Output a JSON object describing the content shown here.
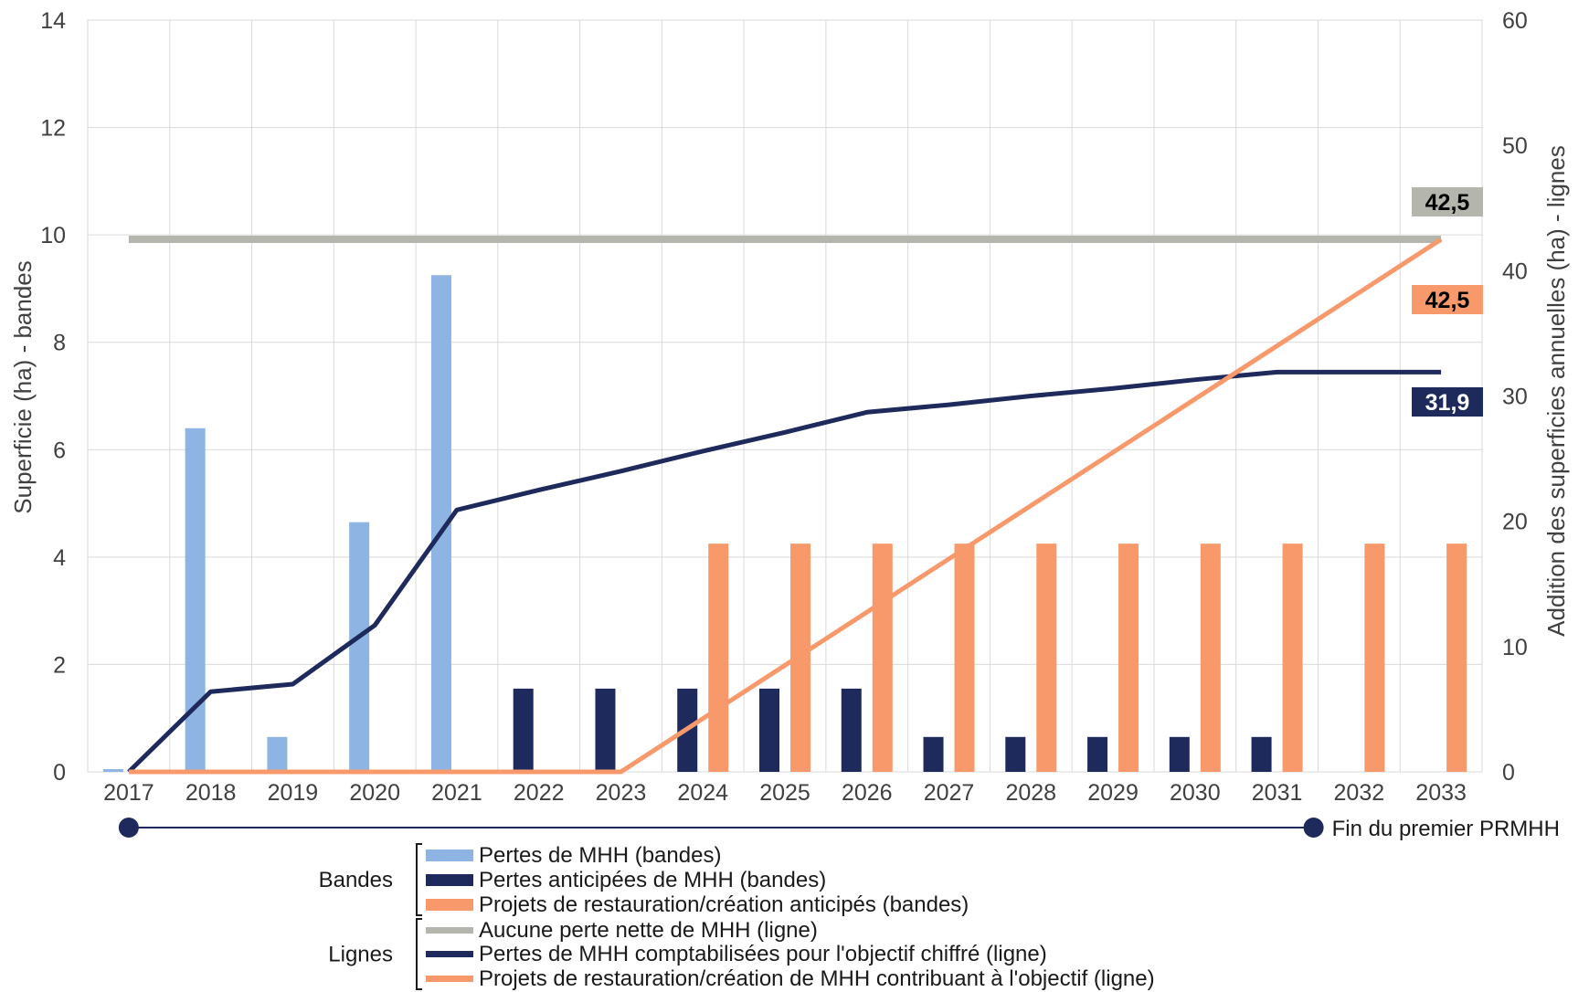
{
  "chart_data": {
    "type": "bar",
    "categories": [
      "2017",
      "2018",
      "2019",
      "2020",
      "2021",
      "2022",
      "2023",
      "2024",
      "2025",
      "2026",
      "2027",
      "2028",
      "2029",
      "2030",
      "2031",
      "2032",
      "2033"
    ],
    "y_left": {
      "label": "Superficie (ha) - bandes",
      "ylim": [
        0,
        14
      ],
      "ticks": [
        "0",
        "2",
        "4",
        "6",
        "8",
        "10",
        "12",
        "14"
      ]
    },
    "y_right": {
      "label": "Addition des superficies annuelles (ha) - lignes",
      "ylim": [
        0,
        60
      ],
      "ticks": [
        "0",
        "10",
        "20",
        "30",
        "40",
        "50",
        "60"
      ]
    },
    "grid": true,
    "bar_series": [
      {
        "name": "Pertes de MHH (bandes)",
        "color": "#8db4e2",
        "axis": "left",
        "values": [
          0.05,
          6.4,
          0.65,
          4.65,
          9.25,
          0,
          0,
          0,
          0,
          0,
          0,
          0,
          0,
          0,
          0,
          0,
          0
        ]
      },
      {
        "name": "Pertes anticipées de MHH (bandes)",
        "color": "#1f2a5c",
        "axis": "left",
        "values": [
          0,
          0,
          0,
          0,
          0,
          1.55,
          1.55,
          1.55,
          1.55,
          1.55,
          0.65,
          0.65,
          0.65,
          0.65,
          0.65,
          0,
          0
        ]
      },
      {
        "name": "Projets de restauration/création anticipés (bandes)",
        "color": "#f8996b",
        "axis": "left",
        "values": [
          0,
          0,
          0,
          0,
          0,
          0,
          0,
          4.25,
          4.25,
          4.25,
          4.25,
          4.25,
          4.25,
          4.25,
          4.25,
          4.25,
          4.25
        ]
      }
    ],
    "line_series": [
      {
        "name": "Aucune perte nette de MHH (ligne)",
        "color": "#b4b5ad",
        "axis": "right",
        "values": [
          42.5,
          42.5,
          42.5,
          42.5,
          42.5,
          42.5,
          42.5,
          42.5,
          42.5,
          42.5,
          42.5,
          42.5,
          42.5,
          42.5,
          42.5,
          42.5,
          42.5
        ]
      },
      {
        "name": "Pertes de MHH comptabilisées pour l'objectif chiffré (ligne)",
        "color": "#1f2a5c",
        "axis": "right",
        "values": [
          0,
          6.4,
          7.0,
          11.7,
          20.9,
          22.5,
          24.0,
          25.6,
          27.1,
          28.7,
          29.3,
          30.0,
          30.6,
          31.3,
          31.9,
          31.9,
          31.9
        ]
      },
      {
        "name": "Projets de restauration/création de MHH contribuant à l'objectif (ligne)",
        "color": "#f8996b",
        "axis": "right",
        "values": [
          0,
          0,
          0,
          0,
          0,
          0,
          0,
          4.25,
          8.5,
          12.75,
          17.0,
          21.25,
          25.5,
          29.75,
          34.0,
          38.25,
          42.5
        ]
      }
    ],
    "callouts": [
      {
        "text": "42,5",
        "bg": "#b4b5ad",
        "fg": "#000000",
        "series": 0
      },
      {
        "text": "42,5",
        "bg": "#f8996b",
        "fg": "#000000",
        "series": 2
      },
      {
        "text": "31,9",
        "bg": "#1f2a5c",
        "fg": "#ffffff",
        "series": 1
      }
    ],
    "timeline": {
      "start": "2017",
      "end": "2031",
      "end_label": "Fin du premier PRMHH",
      "color": "#1f2a5c"
    },
    "legend_groups": [
      {
        "label": "Bandes",
        "items": [
          {
            "text": "Pertes de MHH (bandes)",
            "color": "#8db4e2"
          },
          {
            "text": "Pertes anticipées de MHH (bandes)",
            "color": "#1f2a5c"
          },
          {
            "text": "Projets de restauration/création anticipés (bandes)",
            "color": "#f8996b"
          }
        ]
      },
      {
        "label": "Lignes",
        "items": [
          {
            "text": "Aucune perte nette de MHH (ligne)",
            "color": "#b4b5ad"
          },
          {
            "text": "Pertes de MHH comptabilisées pour l'objectif chiffré (ligne)",
            "color": "#1f2a5c"
          },
          {
            "text": "Projets de restauration/création de MHH contribuant à l'objectif (ligne)",
            "color": "#f8996b"
          }
        ]
      }
    ]
  }
}
